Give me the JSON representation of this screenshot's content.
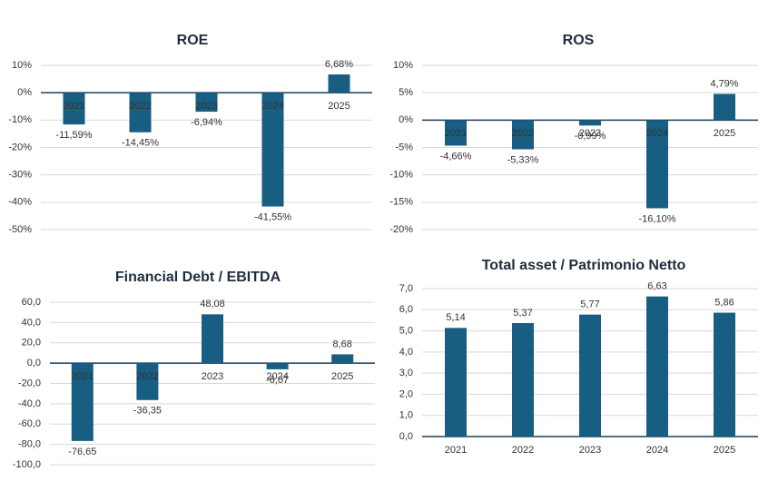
{
  "chart_data": [
    {
      "type": "bar",
      "title": "ROE",
      "categories": [
        "2021",
        "2022",
        "2023",
        "2024",
        "2025"
      ],
      "values": [
        -11.59,
        -14.45,
        -6.94,
        -41.55,
        6.68
      ],
      "value_labels": [
        "-11,59%",
        "-14,45%",
        "-6,94%",
        "-41,55%",
        "6,68%"
      ],
      "color": "#175e82",
      "ylim": [
        -50,
        10
      ],
      "yticks": [
        {
          "value": 10,
          "label": "10%"
        },
        {
          "value": 0,
          "label": "0%"
        },
        {
          "value": -10,
          "label": "-10%"
        },
        {
          "value": -20,
          "label": "-20%"
        },
        {
          "value": -30,
          "label": "-30%"
        },
        {
          "value": -40,
          "label": "-40%"
        },
        {
          "value": -50,
          "label": "-50%"
        }
      ],
      "grid": true
    },
    {
      "type": "bar",
      "title": "ROS",
      "categories": [
        "2021",
        "2022",
        "2023",
        "2024",
        "2025"
      ],
      "values": [
        -4.66,
        -5.33,
        -0.99,
        -16.1,
        4.79
      ],
      "value_labels": [
        "-4,66%",
        "-5,33%",
        "-0,99%",
        "-16,10%",
        "4,79%"
      ],
      "color": "#175e82",
      "ylim": [
        -20,
        10
      ],
      "yticks": [
        {
          "value": 10,
          "label": "10%"
        },
        {
          "value": 5,
          "label": "5%"
        },
        {
          "value": 0,
          "label": "0%"
        },
        {
          "value": -5,
          "label": "-5%"
        },
        {
          "value": -10,
          "label": "-10%"
        },
        {
          "value": -15,
          "label": "-15%"
        },
        {
          "value": -20,
          "label": "-20%"
        }
      ],
      "grid": true
    },
    {
      "type": "bar",
      "title": "Financial Debt / EBITDA",
      "categories": [
        "2021",
        "2022",
        "2023",
        "2024",
        "2025"
      ],
      "values": [
        -76.65,
        -36.35,
        48.08,
        -6.07,
        8.68
      ],
      "value_labels": [
        "-76,65",
        "-36,35",
        "48,08",
        "-6,07",
        "8,68"
      ],
      "color": "#175e82",
      "ylim": [
        -100,
        60
      ],
      "yticks": [
        {
          "value": 60,
          "label": "60,0"
        },
        {
          "value": 40,
          "label": "40,0"
        },
        {
          "value": 20,
          "label": "20,0"
        },
        {
          "value": 0,
          "label": "0,0"
        },
        {
          "value": -20,
          "label": "-20,0"
        },
        {
          "value": -40,
          "label": "-40,0"
        },
        {
          "value": -60,
          "label": "-60,0"
        },
        {
          "value": -80,
          "label": "-80,0"
        },
        {
          "value": -100,
          "label": "-100,0"
        }
      ],
      "grid": true
    },
    {
      "type": "bar",
      "title": "Total asset /  Patrimonio Netto",
      "categories": [
        "2021",
        "2022",
        "2023",
        "2024",
        "2025"
      ],
      "values": [
        5.14,
        5.37,
        5.77,
        6.63,
        5.86
      ],
      "value_labels": [
        "5,14",
        "5,37",
        "5,77",
        "6,63",
        "5,86"
      ],
      "color": "#175e82",
      "ylim": [
        0,
        7
      ],
      "yticks": [
        {
          "value": 7,
          "label": "7,0"
        },
        {
          "value": 6,
          "label": "6,0"
        },
        {
          "value": 5,
          "label": "5,0"
        },
        {
          "value": 4,
          "label": "4,0"
        },
        {
          "value": 3,
          "label": "3,0"
        },
        {
          "value": 2,
          "label": "2,0"
        },
        {
          "value": 1,
          "label": "1,0"
        },
        {
          "value": 0,
          "label": "0,0"
        }
      ],
      "grid": true
    }
  ]
}
